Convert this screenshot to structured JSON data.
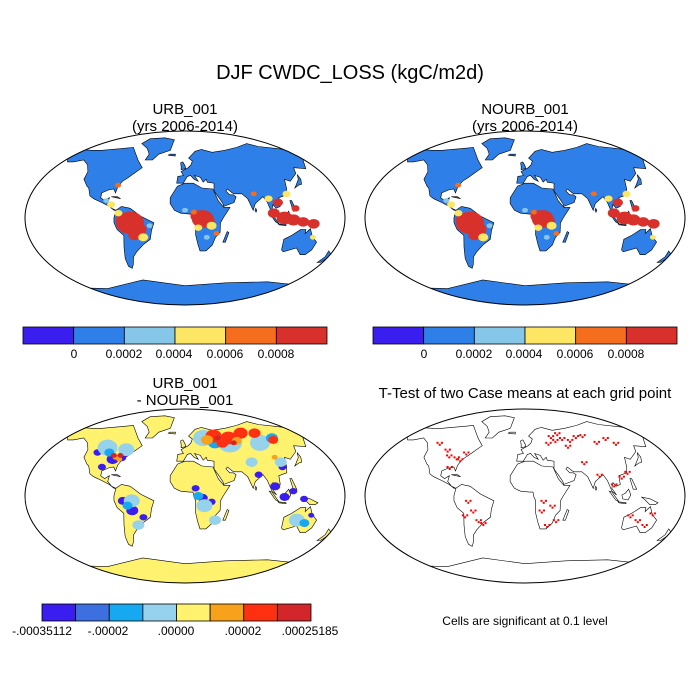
{
  "figure": {
    "title": "DJF CWDC_LOSS (kgC/m2d)"
  },
  "panels": [
    {
      "title_line1": "URB_001",
      "title_line2": "(yrs 2006-2014)"
    },
    {
      "title_line1": "NOURB_001",
      "title_line2": "(yrs 2006-2014)"
    },
    {
      "title_line1": "URB_001",
      "title_line2": "- NOURB_001"
    },
    {
      "title_line1": "T-Test of two Case means at each grid point",
      "title_line2": ""
    }
  ],
  "colorbars": {
    "field": {
      "colors": [
        "#3a1ef0",
        "#2f7fe8",
        "#86c6e8",
        "#fde664",
        "#f56e1e",
        "#d8302a"
      ],
      "ticks": [
        "0",
        "0.0002",
        "0.0004",
        "0.0006",
        "0.0008"
      ]
    },
    "difference": {
      "colors": [
        "#3a1ef0",
        "#3d6fe0",
        "#16a8f0",
        "#96d2ec",
        "#fff26e",
        "#f8a11a",
        "#ff2f12",
        "#d3262a"
      ],
      "ticks": [
        ".00035112",
        "-.00002",
        ".00000",
        ".00002",
        ".00025185"
      ],
      "tick_prefixes": [
        "-",
        "",
        "",
        "",
        ""
      ]
    }
  },
  "ttest": {
    "note": "Cells are significant at 0.1 level",
    "significant_color": "#ff0000"
  },
  "map_colors": {
    "ocean": "#ffffff",
    "land_field_base": "#2f7fe8",
    "land_diff_base": "#fff26e",
    "coast": "#000000"
  }
}
